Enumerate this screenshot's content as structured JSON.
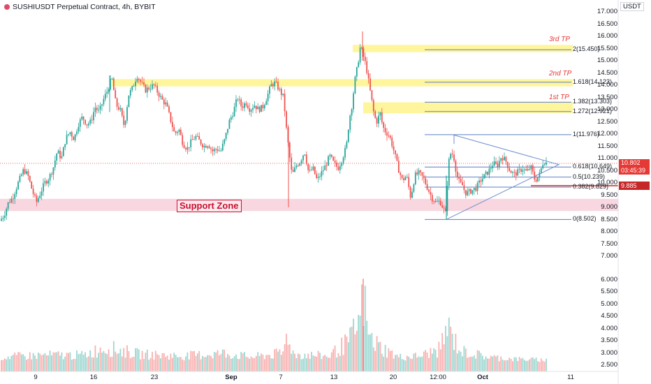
{
  "header": {
    "title": "SUSHIUSDT Perpetual Contract, 4h, BYBIT",
    "unit": "USDT"
  },
  "chart_data": {
    "type": "candlestick",
    "y_range": [
      7.0,
      17.5
    ],
    "volume_axis_range": [
      2.3,
      6.5
    ],
    "y_ticks": [
      "17.000",
      "16.500",
      "16.000",
      "15.500",
      "15.000",
      "14.500",
      "14.000",
      "13.500",
      "13.000",
      "12.500",
      "12.000",
      "11.500",
      "11.000",
      "10.500",
      "10.000",
      "9.500",
      "9.000",
      "8.500",
      "8.000",
      "7.500",
      "7.000"
    ],
    "volume_ticks": [
      "6.000",
      "5.500",
      "5.000",
      "4.500",
      "4.000",
      "3.500",
      "3.000",
      "2.500"
    ],
    "x_ticks": [
      {
        "label": "9",
        "bold": false
      },
      {
        "label": "16",
        "bold": false
      },
      {
        "label": "23",
        "bold": false
      },
      {
        "label": "Sep",
        "bold": true
      },
      {
        "label": "7",
        "bold": false
      },
      {
        "label": "13",
        "bold": false
      },
      {
        "label": "20",
        "bold": false
      },
      {
        "label": "12:00",
        "bold": false
      },
      {
        "label": "Oct",
        "bold": true
      },
      {
        "label": "11",
        "bold": false
      }
    ],
    "price_path": [
      [
        0,
        8.45
      ],
      [
        6,
        8.7
      ],
      [
        12,
        9.2
      ],
      [
        18,
        9.4
      ],
      [
        26,
        10.0
      ],
      [
        34,
        10.55
      ],
      [
        40,
        10.3
      ],
      [
        46,
        9.7
      ],
      [
        52,
        9.2
      ],
      [
        58,
        9.6
      ],
      [
        64,
        10.0
      ],
      [
        70,
        10.2
      ],
      [
        76,
        10.6
      ],
      [
        82,
        11.3
      ],
      [
        88,
        11.0
      ],
      [
        94,
        11.8
      ],
      [
        100,
        12.1
      ],
      [
        106,
        11.8
      ],
      [
        112,
        12.4
      ],
      [
        118,
        12.7
      ],
      [
        124,
        12.4
      ],
      [
        130,
        12.5
      ],
      [
        136,
        13.1
      ],
      [
        142,
        12.9
      ],
      [
        148,
        13.4
      ],
      [
        154,
        13.8
      ],
      [
        160,
        14.3
      ],
      [
        166,
        13.2
      ],
      [
        172,
        13.0
      ],
      [
        178,
        12.3
      ],
      [
        184,
        13.6
      ],
      [
        190,
        13.9
      ],
      [
        196,
        14.4
      ],
      [
        202,
        14.1
      ],
      [
        208,
        13.8
      ],
      [
        214,
        13.9
      ],
      [
        220,
        14.0
      ],
      [
        226,
        13.7
      ],
      [
        232,
        13.4
      ],
      [
        238,
        13.2
      ],
      [
        244,
        12.6
      ],
      [
        250,
        12.0
      ],
      [
        256,
        12.2
      ],
      [
        262,
        11.6
      ],
      [
        268,
        11.4
      ],
      [
        274,
        11.7
      ],
      [
        280,
        11.9
      ],
      [
        286,
        11.7
      ],
      [
        292,
        11.5
      ],
      [
        298,
        11.6
      ],
      [
        304,
        11.3
      ],
      [
        310,
        11.4
      ],
      [
        316,
        11.3
      ],
      [
        322,
        11.8
      ],
      [
        328,
        12.5
      ],
      [
        334,
        12.9
      ],
      [
        340,
        13.5
      ],
      [
        346,
        13.1
      ],
      [
        352,
        13.3
      ],
      [
        358,
        13.0
      ],
      [
        364,
        13.2
      ],
      [
        370,
        13.0
      ],
      [
        376,
        13.1
      ],
      [
        382,
        13.5
      ],
      [
        388,
        14.0
      ],
      [
        394,
        14.1
      ],
      [
        400,
        13.8
      ],
      [
        406,
        13.5
      ],
      [
        410,
        12.2
      ],
      [
        414,
        11.2
      ],
      [
        418,
        10.3
      ],
      [
        424,
        10.7
      ],
      [
        430,
        10.9
      ],
      [
        436,
        11.3
      ],
      [
        442,
        10.4
      ],
      [
        448,
        10.6
      ],
      [
        454,
        10.1
      ],
      [
        460,
        10.4
      ],
      [
        466,
        10.7
      ],
      [
        472,
        11.1
      ],
      [
        478,
        10.8
      ],
      [
        484,
        10.6
      ],
      [
        490,
        11.0
      ],
      [
        496,
        11.5
      ],
      [
        500,
        12.6
      ],
      [
        504,
        13.2
      ],
      [
        508,
        14.2
      ],
      [
        512,
        14.8
      ],
      [
        516,
        15.6
      ],
      [
        520,
        15.2
      ],
      [
        524,
        14.8
      ],
      [
        528,
        14.1
      ],
      [
        532,
        13.4
      ],
      [
        536,
        12.7
      ],
      [
        540,
        12.5
      ],
      [
        544,
        12.9
      ],
      [
        548,
        12.3
      ],
      [
        552,
        12.1
      ],
      [
        558,
        11.9
      ],
      [
        564,
        11.3
      ],
      [
        570,
        10.6
      ],
      [
        576,
        10.1
      ],
      [
        582,
        10.3
      ],
      [
        588,
        9.4
      ],
      [
        594,
        10.3
      ],
      [
        600,
        10.4
      ],
      [
        606,
        10.2
      ],
      [
        612,
        9.8
      ],
      [
        618,
        9.4
      ],
      [
        624,
        9.2
      ],
      [
        630,
        9.25
      ],
      [
        634,
        9.0
      ],
      [
        638,
        8.75
      ],
      [
        642,
        10.8
      ],
      [
        646,
        11.3
      ],
      [
        650,
        11.0
      ],
      [
        654,
        10.3
      ],
      [
        658,
        10.0
      ],
      [
        662,
        9.9
      ],
      [
        666,
        9.6
      ],
      [
        670,
        9.6
      ],
      [
        676,
        9.7
      ],
      [
        682,
        9.8
      ],
      [
        688,
        10.1
      ],
      [
        694,
        10.3
      ],
      [
        700,
        10.5
      ],
      [
        706,
        10.8
      ],
      [
        712,
        10.7
      ],
      [
        718,
        11.1
      ],
      [
        724,
        10.9
      ],
      [
        730,
        10.5
      ],
      [
        736,
        10.35
      ],
      [
        742,
        10.45
      ],
      [
        748,
        10.6
      ],
      [
        754,
        10.45
      ],
      [
        760,
        10.65
      ],
      [
        766,
        10.1
      ],
      [
        772,
        10.3
      ],
      [
        778,
        10.9
      ],
      [
        784,
        10.8
      ]
    ],
    "volume_profile": [
      [
        0,
        2.9
      ],
      [
        60,
        3.0
      ],
      [
        120,
        3.0
      ],
      [
        150,
        3.4
      ],
      [
        200,
        3.05
      ],
      [
        260,
        2.95
      ],
      [
        320,
        3.1
      ],
      [
        360,
        2.9
      ],
      [
        405,
        3.1
      ],
      [
        412,
        4.2
      ],
      [
        420,
        3.05
      ],
      [
        470,
        2.95
      ],
      [
        500,
        3.7
      ],
      [
        516,
        4.8
      ],
      [
        520,
        6.05
      ],
      [
        528,
        3.9
      ],
      [
        545,
        3.4
      ],
      [
        570,
        2.9
      ],
      [
        600,
        2.95
      ],
      [
        630,
        3.3
      ],
      [
        640,
        4.4
      ],
      [
        660,
        3.2
      ],
      [
        700,
        2.9
      ],
      [
        740,
        2.8
      ],
      [
        784,
        2.75
      ]
    ],
    "last_price": "10.802",
    "countdown": "03:45:39",
    "marker_price": "9.885",
    "support_zone": {
      "label": "Support Zone",
      "from": 8.85,
      "to": 9.35
    },
    "tp_zones": [
      {
        "label": "3rd TP",
        "from": 15.35,
        "to": 15.65
      },
      {
        "label": "2nd TP",
        "from": 13.95,
        "to": 14.25
      },
      {
        "label": "1st TP",
        "from": 12.85,
        "to": 13.3
      }
    ],
    "fib_levels": [
      {
        "label": "2(15.450)",
        "value": 15.45
      },
      {
        "label": "1.618(14.123)",
        "value": 14.123
      },
      {
        "label": "1.382(13.303)",
        "value": 13.303
      },
      {
        "label": "1.272(12.921)",
        "value": 12.921
      },
      {
        "label": "1(11.976)",
        "value": 11.976
      },
      {
        "label": "0.618(10.649)",
        "value": 10.649
      },
      {
        "label": "0.5(10.239)",
        "value": 10.239
      },
      {
        "label": "0.382(9.829)",
        "value": 9.829
      },
      {
        "label": "0(8.502)",
        "value": 8.502
      }
    ],
    "colors": {
      "up": "#26a69a",
      "down": "#ef5350",
      "zone_yellow": "#fff59d",
      "zone_pink": "#f8d7e1",
      "fib": "#5b7fc4",
      "triangle": "#6f8fd0"
    }
  }
}
